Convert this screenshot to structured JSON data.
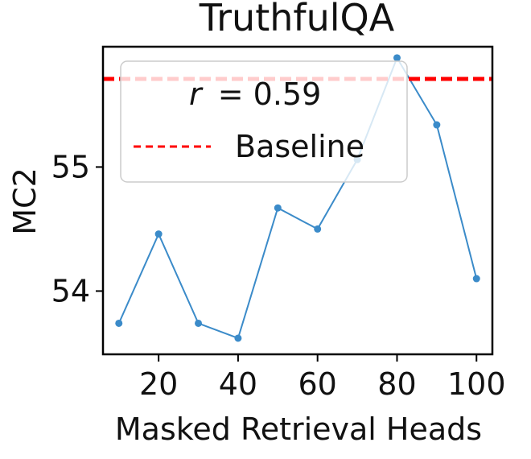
{
  "chart_data": {
    "type": "line",
    "title": "TruthfulQA",
    "xlabel": "Masked Retrieval Heads",
    "ylabel": "MC2",
    "x": [
      10,
      20,
      30,
      40,
      50,
      60,
      70,
      80,
      90,
      100
    ],
    "series": [
      {
        "name": "",
        "color": "#3b8bc9",
        "values": [
          53.74,
          54.46,
          53.74,
          53.62,
          54.67,
          54.5,
          55.06,
          55.88,
          55.34,
          54.1
        ]
      }
    ],
    "baseline": {
      "name": "Baseline",
      "value": 55.71,
      "color": "#ff0000",
      "style": "dashed"
    },
    "annotation": "r = 0.59",
    "annotation_r": "r",
    "annotation_eq": "= 0.59",
    "xlim": [
      6,
      104
    ],
    "ylim": [
      53.49,
      55.97
    ],
    "xticks": [
      20,
      40,
      60,
      80,
      100
    ],
    "yticks": [
      54,
      55
    ],
    "grid": false,
    "legend_position": "top-left"
  }
}
